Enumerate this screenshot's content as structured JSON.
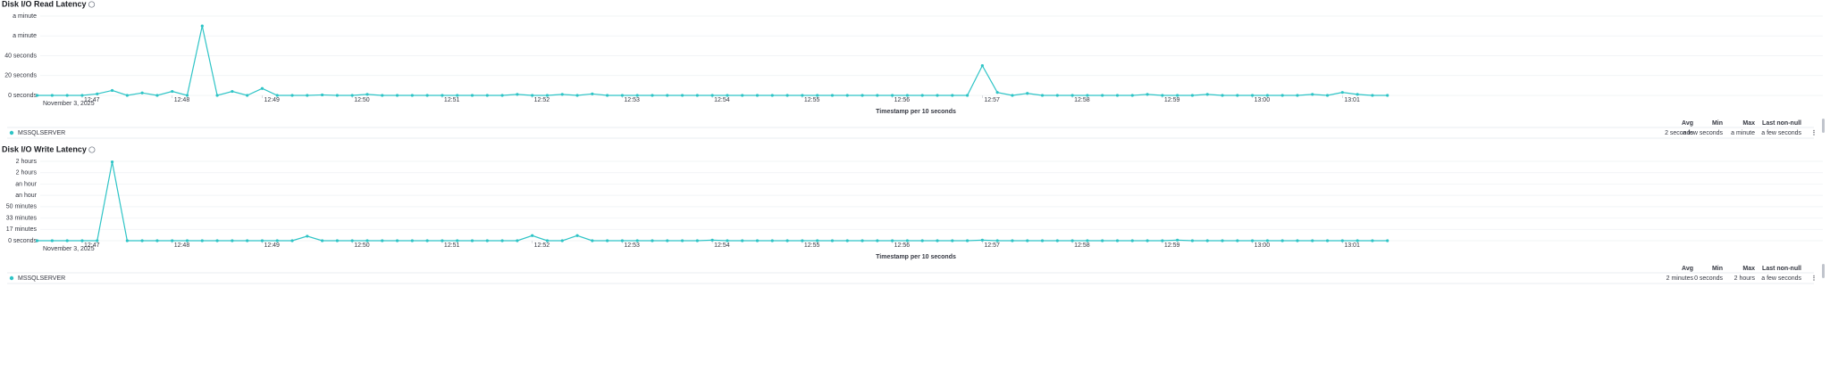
{
  "chart_data": [
    {
      "type": "line",
      "title": "Disk I/O Read Latency",
      "x_label": "Timestamp per 10 seconds",
      "date_label": "November 3, 2025",
      "x": [
        45990,
        46000,
        46010,
        46020,
        46030,
        46040,
        46050,
        46060,
        46070,
        46080,
        46090,
        46100,
        46110,
        46120,
        46130,
        46140,
        46150,
        46160,
        46170,
        46180,
        46190,
        46200,
        46210,
        46220,
        46230,
        46240,
        46250,
        46260,
        46270,
        46280,
        46290,
        46300,
        46310,
        46320,
        46330,
        46340,
        46350,
        46360,
        46370,
        46380,
        46390,
        46400,
        46410,
        46420,
        46430,
        46440,
        46450,
        46460,
        46470,
        46480,
        46490,
        46500,
        46510,
        46520,
        46530,
        46540,
        46550,
        46560,
        46570,
        46580,
        46590,
        46600,
        46610,
        46620,
        46630,
        46640,
        46650,
        46660,
        46670,
        46680,
        46690,
        46700,
        46710,
        46720,
        46730,
        46740,
        46750,
        46760,
        46770,
        46780,
        46790,
        46800,
        46810,
        46820,
        46830,
        46840,
        46850,
        46860,
        46870,
        46880,
        46890
      ],
      "series": [
        {
          "name": "MSSQLSERVER",
          "color": "#2ec4c6",
          "values": [
            0,
            0,
            0,
            0,
            1.5,
            5,
            0,
            2.5,
            0,
            4,
            0,
            70,
            0,
            4,
            0,
            7,
            0,
            0,
            0,
            0.5,
            0,
            0,
            1,
            0,
            0,
            0,
            0,
            0,
            0,
            0,
            0,
            0,
            1,
            0,
            0,
            1,
            0,
            1.5,
            0,
            0,
            0,
            0,
            0,
            0,
            0,
            0,
            0,
            0,
            0,
            0,
            0,
            0,
            0,
            0,
            0,
            0,
            0,
            0,
            0,
            0,
            0,
            0,
            0,
            30,
            3,
            0,
            2,
            0,
            0,
            0,
            0,
            0,
            0,
            0,
            1,
            0,
            0,
            0,
            1,
            0,
            0,
            0,
            0,
            0,
            0,
            1,
            0,
            3,
            1,
            0,
            0
          ]
        }
      ],
      "ylim": [
        0,
        80
      ],
      "yticks": [
        {
          "value": 0,
          "label": "0 seconds"
        },
        {
          "value": 20,
          "label": "20 seconds"
        },
        {
          "value": 40,
          "label": "40 seconds"
        },
        {
          "value": 60,
          "label": "a minute"
        },
        {
          "value": 80,
          "label": "a minute"
        }
      ],
      "xlim": [
        45990,
        46890
      ],
      "xticks": [
        {
          "value": 46020,
          "label": "12:47"
        },
        {
          "value": 46080,
          "label": "12:48"
        },
        {
          "value": 46140,
          "label": "12:49"
        },
        {
          "value": 46200,
          "label": "12:50"
        },
        {
          "value": 46260,
          "label": "12:51"
        },
        {
          "value": 46320,
          "label": "12:52"
        },
        {
          "value": 46380,
          "label": "12:53"
        },
        {
          "value": 46440,
          "label": "12:54"
        },
        {
          "value": 46500,
          "label": "12:55"
        },
        {
          "value": 46560,
          "label": "12:56"
        },
        {
          "value": 46620,
          "label": "12:57"
        },
        {
          "value": 46680,
          "label": "12:58"
        },
        {
          "value": 46740,
          "label": "12:59"
        },
        {
          "value": 46800,
          "label": "13:00"
        },
        {
          "value": 46860,
          "label": "13:01"
        }
      ],
      "grid": true,
      "stat_headers": [
        "Avg",
        "Min",
        "Max",
        "Last non-null"
      ],
      "stats": [
        "2 seconds",
        "a few seconds",
        "a minute",
        "a few seconds"
      ]
    },
    {
      "type": "line",
      "title": "Disk I/O Write Latency",
      "x_label": "Timestamp per 10 seconds",
      "date_label": "November 3, 2025",
      "x": [
        45990,
        46000,
        46010,
        46020,
        46030,
        46040,
        46050,
        46060,
        46070,
        46080,
        46090,
        46100,
        46110,
        46120,
        46130,
        46140,
        46150,
        46160,
        46170,
        46180,
        46190,
        46200,
        46210,
        46220,
        46230,
        46240,
        46250,
        46260,
        46270,
        46280,
        46290,
        46300,
        46310,
        46320,
        46330,
        46340,
        46350,
        46360,
        46370,
        46380,
        46390,
        46400,
        46410,
        46420,
        46430,
        46440,
        46450,
        46460,
        46470,
        46480,
        46490,
        46500,
        46510,
        46520,
        46530,
        46540,
        46550,
        46560,
        46570,
        46580,
        46590,
        46600,
        46610,
        46620,
        46630,
        46640,
        46650,
        46660,
        46670,
        46680,
        46690,
        46700,
        46710,
        46720,
        46730,
        46740,
        46750,
        46760,
        46770,
        46780,
        46790,
        46800,
        46810,
        46820,
        46830,
        46840,
        46850,
        46860,
        46870,
        46880,
        46890
      ],
      "series": [
        {
          "name": "MSSQLSERVER",
          "color": "#2ec4c6",
          "values": [
            0,
            0,
            0,
            0,
            0,
            6950,
            0,
            0,
            0,
            0,
            0,
            0,
            0,
            0,
            0,
            0,
            0,
            0,
            400,
            0,
            0,
            0,
            0,
            0,
            0,
            0,
            0,
            0,
            0,
            0,
            0,
            0,
            0,
            450,
            0,
            0,
            450,
            0,
            0,
            0,
            0,
            0,
            0,
            0,
            0,
            50,
            0,
            0,
            0,
            0,
            0,
            0,
            0,
            0,
            0,
            0,
            0,
            0,
            0,
            0,
            0,
            0,
            0,
            50,
            0,
            0,
            0,
            0,
            0,
            0,
            0,
            0,
            0,
            0,
            0,
            0,
            50,
            0,
            0,
            0,
            0,
            0,
            0,
            0,
            0,
            0,
            0,
            0,
            0,
            0,
            0
          ]
        }
      ],
      "ylim": [
        0,
        7000
      ],
      "yticks": [
        {
          "value": 0,
          "label": "0 seconds"
        },
        {
          "value": 1000,
          "label": "17 minutes"
        },
        {
          "value": 2000,
          "label": "33 minutes"
        },
        {
          "value": 3000,
          "label": "50 minutes"
        },
        {
          "value": 4000,
          "label": "an hour"
        },
        {
          "value": 5000,
          "label": "an hour"
        },
        {
          "value": 6000,
          "label": "2 hours"
        },
        {
          "value": 7000,
          "label": "2 hours"
        }
      ],
      "xlim": [
        45990,
        46890
      ],
      "xticks": [
        {
          "value": 46020,
          "label": "12:47"
        },
        {
          "value": 46080,
          "label": "12:48"
        },
        {
          "value": 46140,
          "label": "12:49"
        },
        {
          "value": 46200,
          "label": "12:50"
        },
        {
          "value": 46260,
          "label": "12:51"
        },
        {
          "value": 46320,
          "label": "12:52"
        },
        {
          "value": 46380,
          "label": "12:53"
        },
        {
          "value": 46440,
          "label": "12:54"
        },
        {
          "value": 46500,
          "label": "12:55"
        },
        {
          "value": 46560,
          "label": "12:56"
        },
        {
          "value": 46620,
          "label": "12:57"
        },
        {
          "value": 46680,
          "label": "12:58"
        },
        {
          "value": 46740,
          "label": "12:59"
        },
        {
          "value": 46800,
          "label": "13:00"
        },
        {
          "value": 46860,
          "label": "13:01"
        }
      ],
      "grid": true,
      "stat_headers": [
        "Avg",
        "Min",
        "Max",
        "Last non-null"
      ],
      "stats": [
        "2 minutes",
        "0 seconds",
        "2 hours",
        "a few seconds"
      ]
    }
  ]
}
